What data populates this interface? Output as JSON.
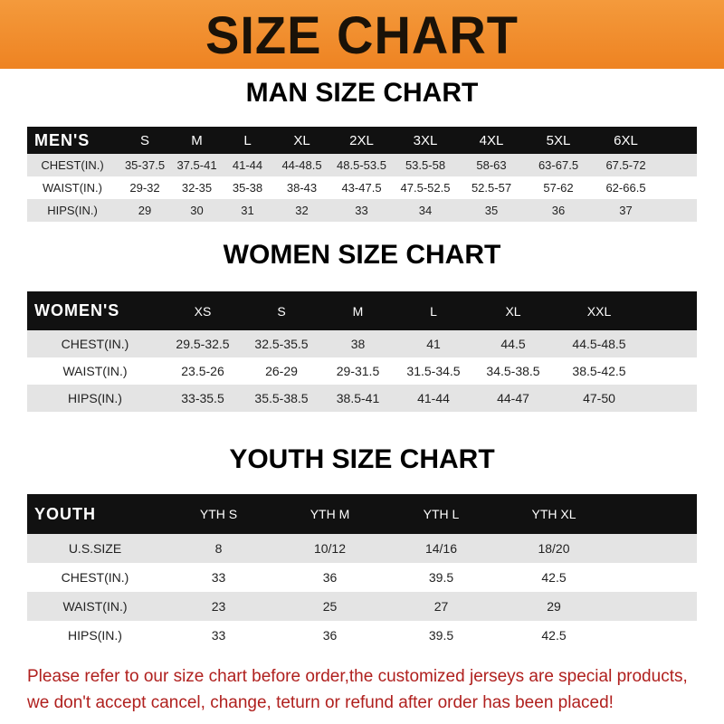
{
  "banner_title": "SIZE CHART",
  "men": {
    "title": "MAN SIZE CHART",
    "header": [
      "MEN'S",
      "S",
      "M",
      "L",
      "XL",
      "2XL",
      "3XL",
      "4XL",
      "5XL",
      "6XL"
    ],
    "rows": [
      [
        "CHEST(IN.)",
        "35-37.5",
        "37.5-41",
        "41-44",
        "44-48.5",
        "48.5-53.5",
        "53.5-58",
        "58-63",
        "63-67.5",
        "67.5-72"
      ],
      [
        "WAIST(IN.)",
        "29-32",
        "32-35",
        "35-38",
        "38-43",
        "43-47.5",
        "47.5-52.5",
        "52.5-57",
        "57-62",
        "62-66.5"
      ],
      [
        "HIPS(IN.)",
        "29",
        "30",
        "31",
        "32",
        "33",
        "34",
        "35",
        "36",
        "37"
      ]
    ]
  },
  "women": {
    "title": "WOMEN SIZE CHART",
    "header": [
      "WOMEN'S",
      "XS",
      "S",
      "M",
      "L",
      "XL",
      "XXL"
    ],
    "rows": [
      [
        "CHEST(IN.)",
        "29.5-32.5",
        "32.5-35.5",
        "38",
        "41",
        "44.5",
        "44.5-48.5"
      ],
      [
        "WAIST(IN.)",
        "23.5-26",
        "26-29",
        "29-31.5",
        "31.5-34.5",
        "34.5-38.5",
        "38.5-42.5"
      ],
      [
        "HIPS(IN.)",
        "33-35.5",
        "35.5-38.5",
        "38.5-41",
        "41-44",
        "44-47",
        "47-50"
      ]
    ]
  },
  "youth": {
    "title": "YOUTH SIZE CHART",
    "header": [
      "YOUTH",
      "YTH S",
      "YTH M",
      "YTH L",
      "YTH XL"
    ],
    "rows": [
      [
        "U.S.SIZE",
        "8",
        "10/12",
        "14/16",
        "18/20"
      ],
      [
        "CHEST(IN.)",
        "33",
        "36",
        "39.5",
        "42.5"
      ],
      [
        "WAIST(IN.)",
        "23",
        "25",
        "27",
        "29"
      ],
      [
        "HIPS(IN.)",
        "33",
        "36",
        "39.5",
        "42.5"
      ]
    ]
  },
  "notice": [
    "Please refer to our size chart before order,the customized jerseys are special products,",
    "we don't accept cancel, change, teturn or refund after order has been placed!"
  ]
}
